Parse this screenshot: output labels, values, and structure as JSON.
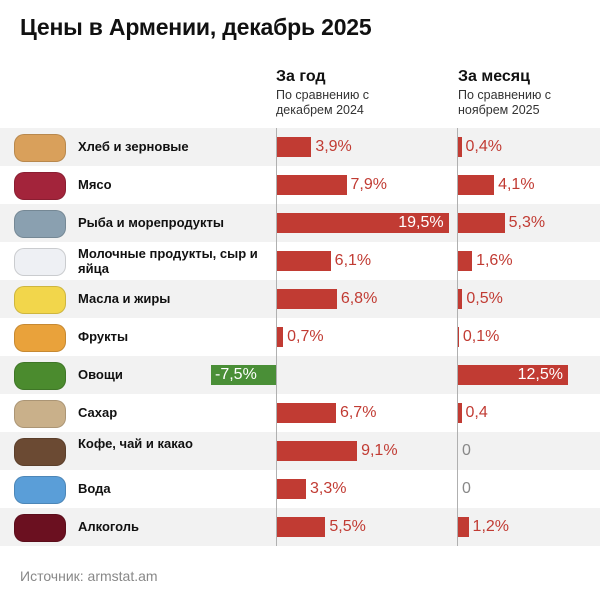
{
  "title": "Цены в Армении, декабрь 2025",
  "source": "Источник: armstat.am",
  "colors": {
    "positive": "#c13b33",
    "negative": "#4a8f37",
    "zero": "#888888"
  },
  "chart_data": {
    "type": "bar",
    "title": "Цены в Армении, декабрь 2025",
    "categories": [
      "Хлеб и зерновые",
      "Мясо",
      "Рыба и морепродукты",
      "Молочные продукты, сыр и яйца",
      "Масла и жиры",
      "Фрукты",
      "Овощи",
      "Сахар",
      "Кофе, чай и какао",
      "Вода",
      "Алкоголь"
    ],
    "icons": [
      "bread-icon",
      "meat-icon",
      "fish-icon",
      "milk-icon",
      "butter-icon",
      "fruit-icon",
      "vegetables-icon",
      "sugar-sack-icon",
      "coffee-cup-icon",
      "water-bottle-icon",
      "wine-icon"
    ],
    "series": [
      {
        "name": "За год",
        "subtitle": "По сравнению с декабрем 2024",
        "values": [
          3.9,
          7.9,
          19.5,
          6.1,
          6.8,
          0.7,
          -7.5,
          6.7,
          9.1,
          3.3,
          5.5
        ],
        "labels": [
          "3,9%",
          "7,9%",
          "19,5%",
          "6,1%",
          "6,8%",
          "0,7%",
          "-7,5%",
          "6,7%",
          "9,1%",
          "3,3%",
          "5,5%"
        ]
      },
      {
        "name": "За месяц",
        "subtitle": "По сравнению с ноябрем 2025",
        "values": [
          0.4,
          4.1,
          5.3,
          1.6,
          0.5,
          0.1,
          12.5,
          0.4,
          0,
          0,
          1.2
        ],
        "labels": [
          "0,4%",
          "4,1%",
          "5,3%",
          "1,6%",
          "0,5%",
          "0,1%",
          "12,5%",
          "0,4",
          "0",
          "0",
          "1,2%"
        ]
      }
    ]
  }
}
